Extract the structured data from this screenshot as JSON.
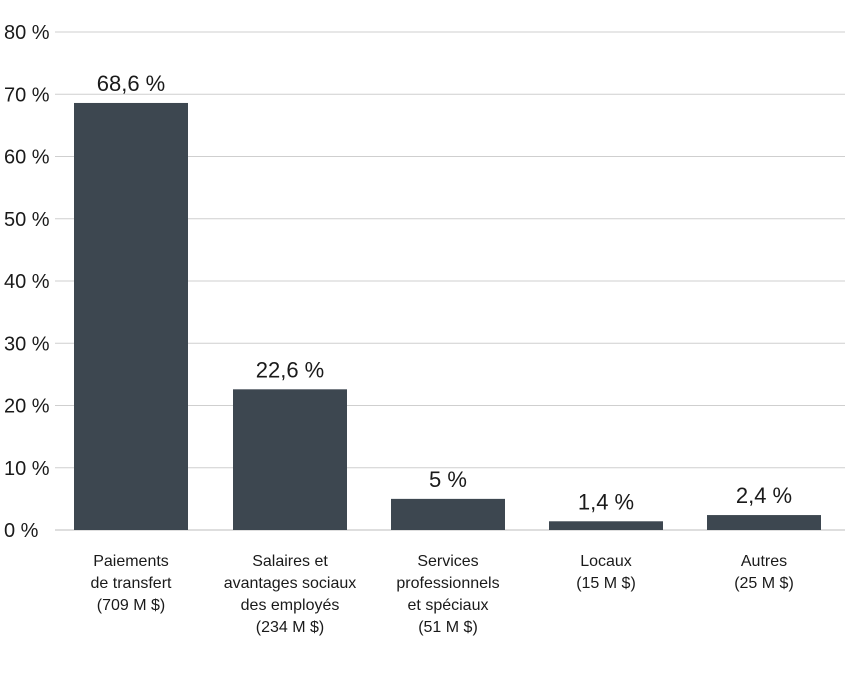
{
  "chart_data": {
    "type": "bar",
    "title": "",
    "xlabel": "",
    "ylabel": "",
    "ylim": [
      0,
      80
    ],
    "yticks": [
      0,
      10,
      20,
      30,
      40,
      50,
      60,
      70,
      80
    ],
    "ytick_labels": [
      "0 %",
      "10 %",
      "20 %",
      "30 %",
      "40 %",
      "50 %",
      "60 %",
      "70 %",
      "80 %"
    ],
    "grid": true,
    "bar_color": "#3d4750",
    "categories": [
      [
        "Paiements",
        "de transfert",
        "(709 M $)"
      ],
      [
        "Salaires et",
        "avantages sociaux",
        "des employés",
        "(234 M $)"
      ],
      [
        "Services",
        "professionnels",
        "et spéciaux",
        "(51 M $)"
      ],
      [
        "Locaux",
        "(15 M $)"
      ],
      [
        "Autres",
        "(25 M $)"
      ]
    ],
    "values": [
      68.6,
      22.6,
      5,
      1.4,
      2.4
    ],
    "value_labels": [
      "68,6 %",
      "22,6 %",
      "5 %",
      "1,4 %",
      "2,4 %"
    ]
  }
}
